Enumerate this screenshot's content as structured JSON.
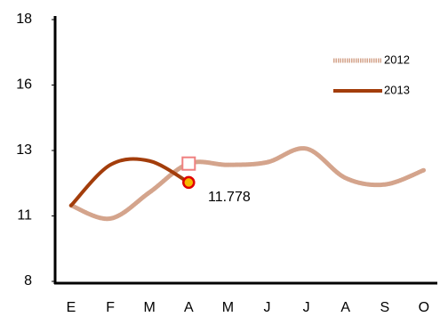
{
  "chart_data": {
    "type": "line",
    "categories": [
      "E",
      "F",
      "M",
      "A",
      "M",
      "J",
      "J",
      "A",
      "S",
      "O"
    ],
    "series": [
      {
        "name": "2012",
        "color": "#d4a48c",
        "values": [
          10.9,
          10.4,
          11.4,
          12.5,
          12.45,
          12.55,
          13.07,
          11.95,
          11.7,
          12.25
        ]
      },
      {
        "name": "2013",
        "color": "#a33d0b",
        "values": [
          10.9,
          12.45,
          12.6,
          11.778,
          null,
          null,
          null,
          null,
          null,
          null
        ]
      }
    ],
    "ylim": [
      8,
      18
    ],
    "yticks": [
      8,
      {
        "value": 10.5,
        "label": "11"
      },
      13,
      {
        "value": 15.5,
        "label": "16"
      },
      18
    ]
  }
}
